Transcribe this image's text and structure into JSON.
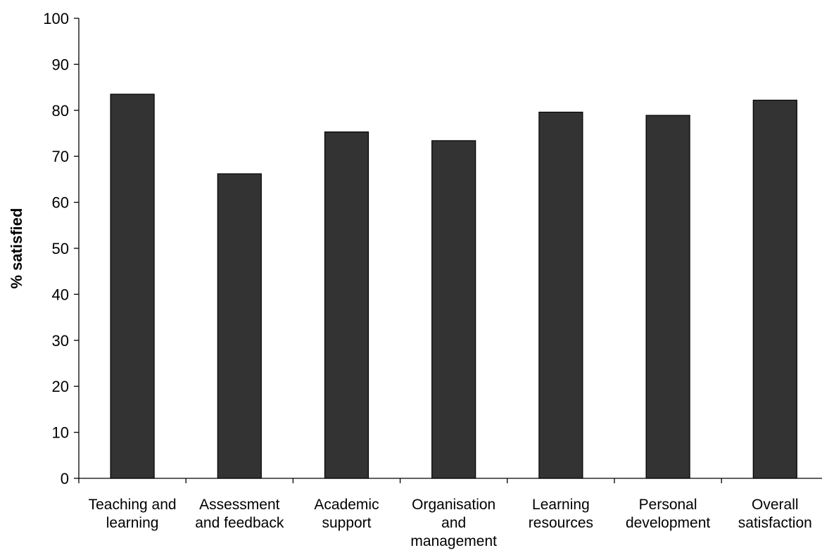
{
  "chart_data": {
    "type": "bar",
    "title": "",
    "xlabel": "",
    "ylabel": "% satisfied",
    "ylim": [
      0,
      100
    ],
    "yticks": [
      0,
      10,
      20,
      30,
      40,
      50,
      60,
      70,
      80,
      90,
      100
    ],
    "grid": false,
    "legend": "none",
    "bar_color": "#333333",
    "categories": [
      [
        "Teaching and",
        "learning"
      ],
      [
        "Assessment",
        "and feedback"
      ],
      [
        "Academic",
        "support"
      ],
      [
        "Organisation",
        "and",
        "management"
      ],
      [
        "Learning",
        "resources"
      ],
      [
        "Personal",
        "development"
      ],
      [
        "Overall",
        "satisfaction"
      ]
    ],
    "values": [
      83.5,
      66.2,
      75.3,
      73.4,
      79.6,
      78.9,
      82.2
    ]
  }
}
